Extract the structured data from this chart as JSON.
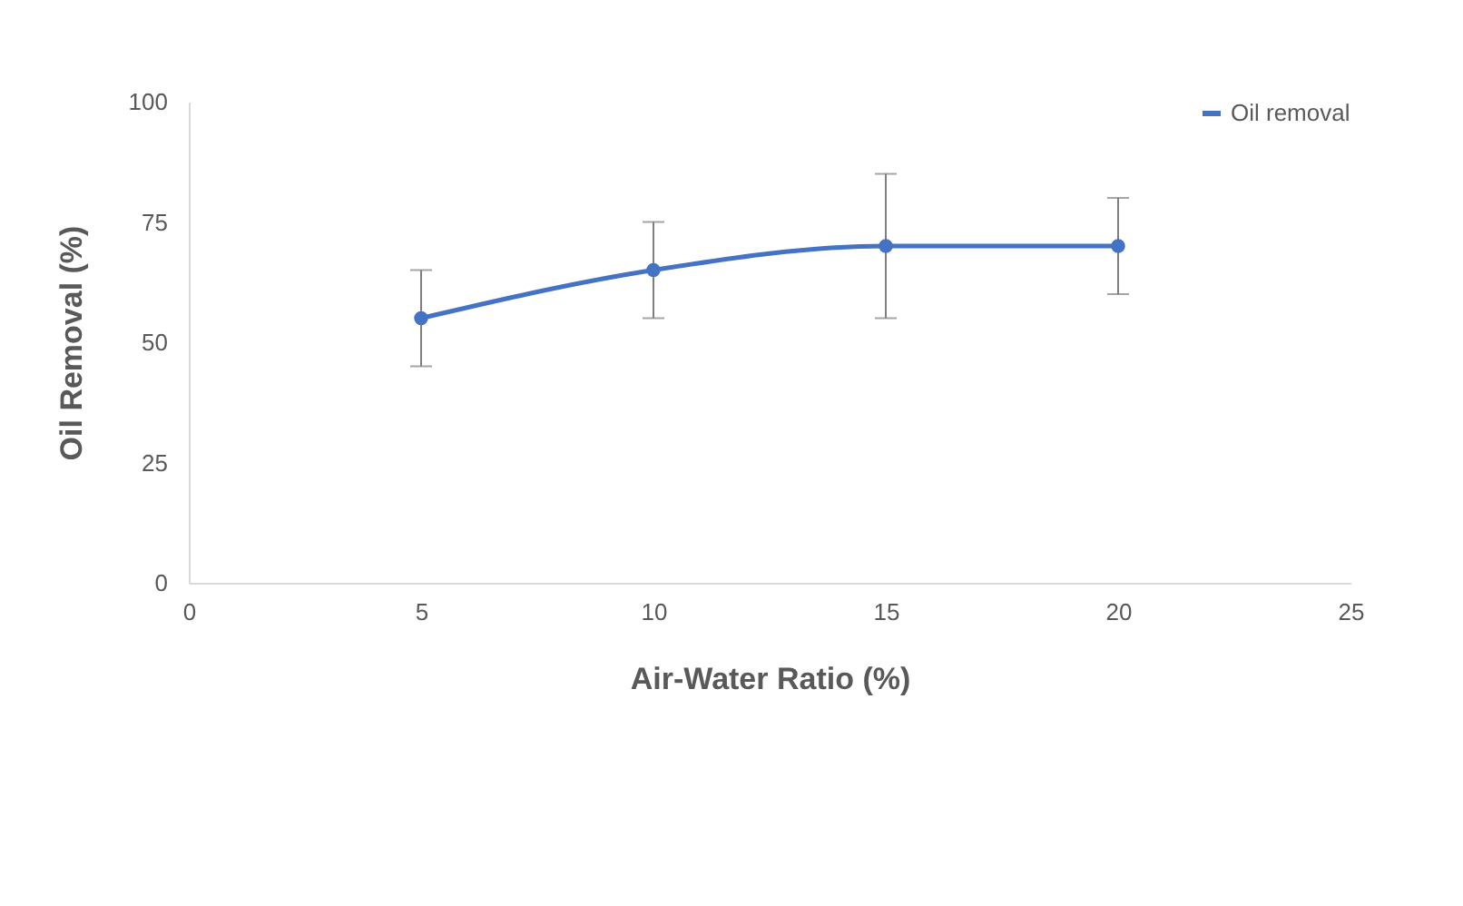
{
  "chart_data": {
    "type": "line",
    "xlabel": "Air-Water Ratio (%)",
    "ylabel": "Oil Removal (%)",
    "x": [
      5,
      10,
      15,
      20
    ],
    "series": [
      {
        "name": "Oil removal",
        "color": "#4472c4",
        "values": [
          55,
          65,
          70,
          70
        ],
        "errors": [
          10,
          10,
          15,
          10
        ]
      }
    ],
    "xlim": [
      0,
      25
    ],
    "xticks": [
      0,
      5,
      10,
      15,
      20,
      25
    ],
    "ylim": [
      0,
      100
    ],
    "yticks": [
      0,
      25,
      50,
      75,
      100
    ],
    "grid": false,
    "legend": "top right",
    "marker": "circle",
    "line_style": "solid"
  }
}
